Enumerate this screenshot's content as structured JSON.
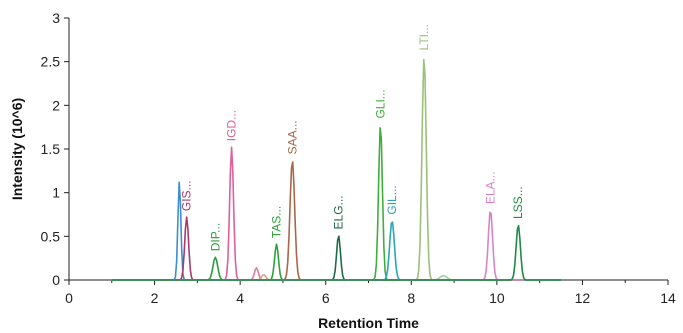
{
  "chart_data": {
    "type": "line",
    "title": "",
    "xlabel": "Retention Time",
    "ylabel": "Intensity (10^6)",
    "xlim": [
      0,
      14
    ],
    "ylim": [
      0,
      3
    ],
    "x_ticks": [
      "0",
      "2",
      "4",
      "6",
      "8",
      "10",
      "12",
      "14"
    ],
    "y_ticks": [
      "0",
      "0.5",
      "1",
      "1.5",
      "2",
      "2.5",
      "3"
    ],
    "grid": false,
    "legend": "none",
    "series": [
      {
        "name": "GIS...",
        "color": "#a93a6a",
        "rt": 2.75,
        "height": 0.72,
        "width": 0.045
      },
      {
        "name": "DIP...",
        "color": "#2e9a3e",
        "rt": 3.42,
        "height": 0.26,
        "width": 0.055
      },
      {
        "name": "IGD...",
        "color": "#e0609a",
        "rt": 3.8,
        "height": 1.52,
        "width": 0.045
      },
      {
        "name": "TAS...",
        "color": "#2ea23a",
        "rt": 4.85,
        "height": 0.41,
        "width": 0.045
      },
      {
        "name": "SAA...",
        "color": "#a8674a",
        "rt": 5.22,
        "height": 1.37,
        "width": 0.055
      },
      {
        "name": "ELG...",
        "color": "#1e6b4a",
        "rt": 6.3,
        "height": 0.51,
        "width": 0.045
      },
      {
        "name": "GLI...",
        "color": "#3fae3a",
        "rt": 7.28,
        "height": 1.78,
        "width": 0.045
      },
      {
        "name": "GIL...",
        "color": "#2aa6b4",
        "rt": 7.55,
        "height": 0.68,
        "width": 0.055
      },
      {
        "name": "LTI...",
        "color": "#9cc07a",
        "rt": 8.3,
        "height": 2.56,
        "width": 0.05
      },
      {
        "name": "ELA...",
        "color": "#d884c8",
        "rt": 9.85,
        "height": 0.8,
        "width": 0.05
      },
      {
        "name": "LSS...",
        "color": "#1f8a44",
        "rt": 10.5,
        "height": 0.63,
        "width": 0.05
      }
    ],
    "unlabeled_peaks": [
      {
        "color": "#3a8fd0",
        "rt": 2.58,
        "height": 1.13,
        "width": 0.035
      },
      {
        "color": "#e07aa0",
        "rt": 4.38,
        "height": 0.14,
        "width": 0.045
      },
      {
        "color": "#d8a08a",
        "rt": 4.55,
        "height": 0.06,
        "width": 0.05
      },
      {
        "color": "#9ad3a0",
        "rt": 8.75,
        "height": 0.05,
        "width": 0.08
      }
    ],
    "trace_range": [
      1.0,
      11.5
    ]
  }
}
